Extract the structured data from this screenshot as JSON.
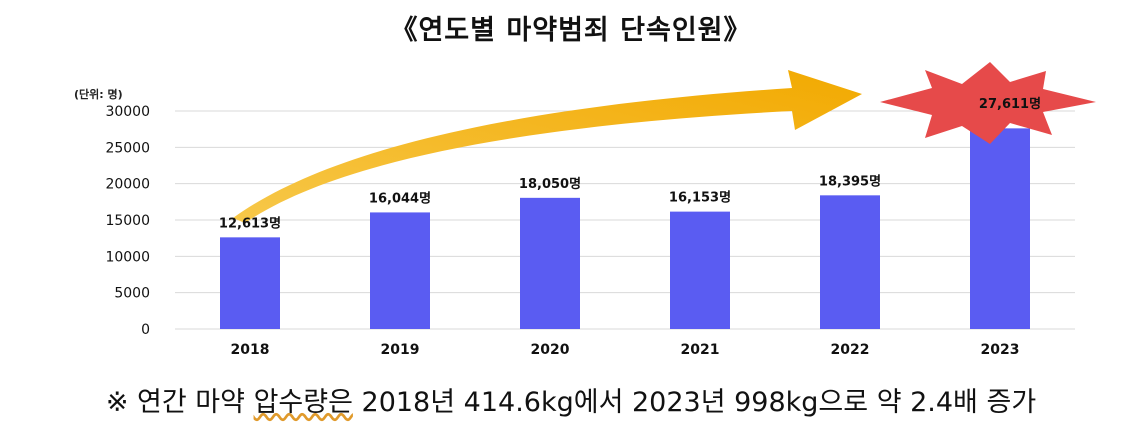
{
  "title": "《연도별 마약범죄 단속인원》",
  "unit_label": "(단위: 명)",
  "chart_data": {
    "type": "bar",
    "categories": [
      "2018",
      "2019",
      "2020",
      "2021",
      "2022",
      "2023"
    ],
    "values": [
      12613,
      16044,
      18050,
      16153,
      18395,
      27611
    ],
    "data_labels": [
      "12,613명",
      "16,044명",
      "18,050명",
      "16,153명",
      "18,395명",
      "27,611명"
    ],
    "y_ticks": [
      0,
      5000,
      10000,
      15000,
      20000,
      25000,
      30000
    ],
    "ylim": [
      0,
      30000
    ],
    "grid": true,
    "highlight_index": 5
  },
  "colors": {
    "bar": "#5a5cf2",
    "arrow": "#f5b418",
    "burst": "#e64a4a",
    "grid": "#d9d9d9"
  },
  "note": {
    "prefix": "※ 연간 마약 ",
    "underlined": "압수량은",
    "suffix": " 2018년 414.6kg에서 2023년 998kg으로 약 2.4배 증가"
  }
}
